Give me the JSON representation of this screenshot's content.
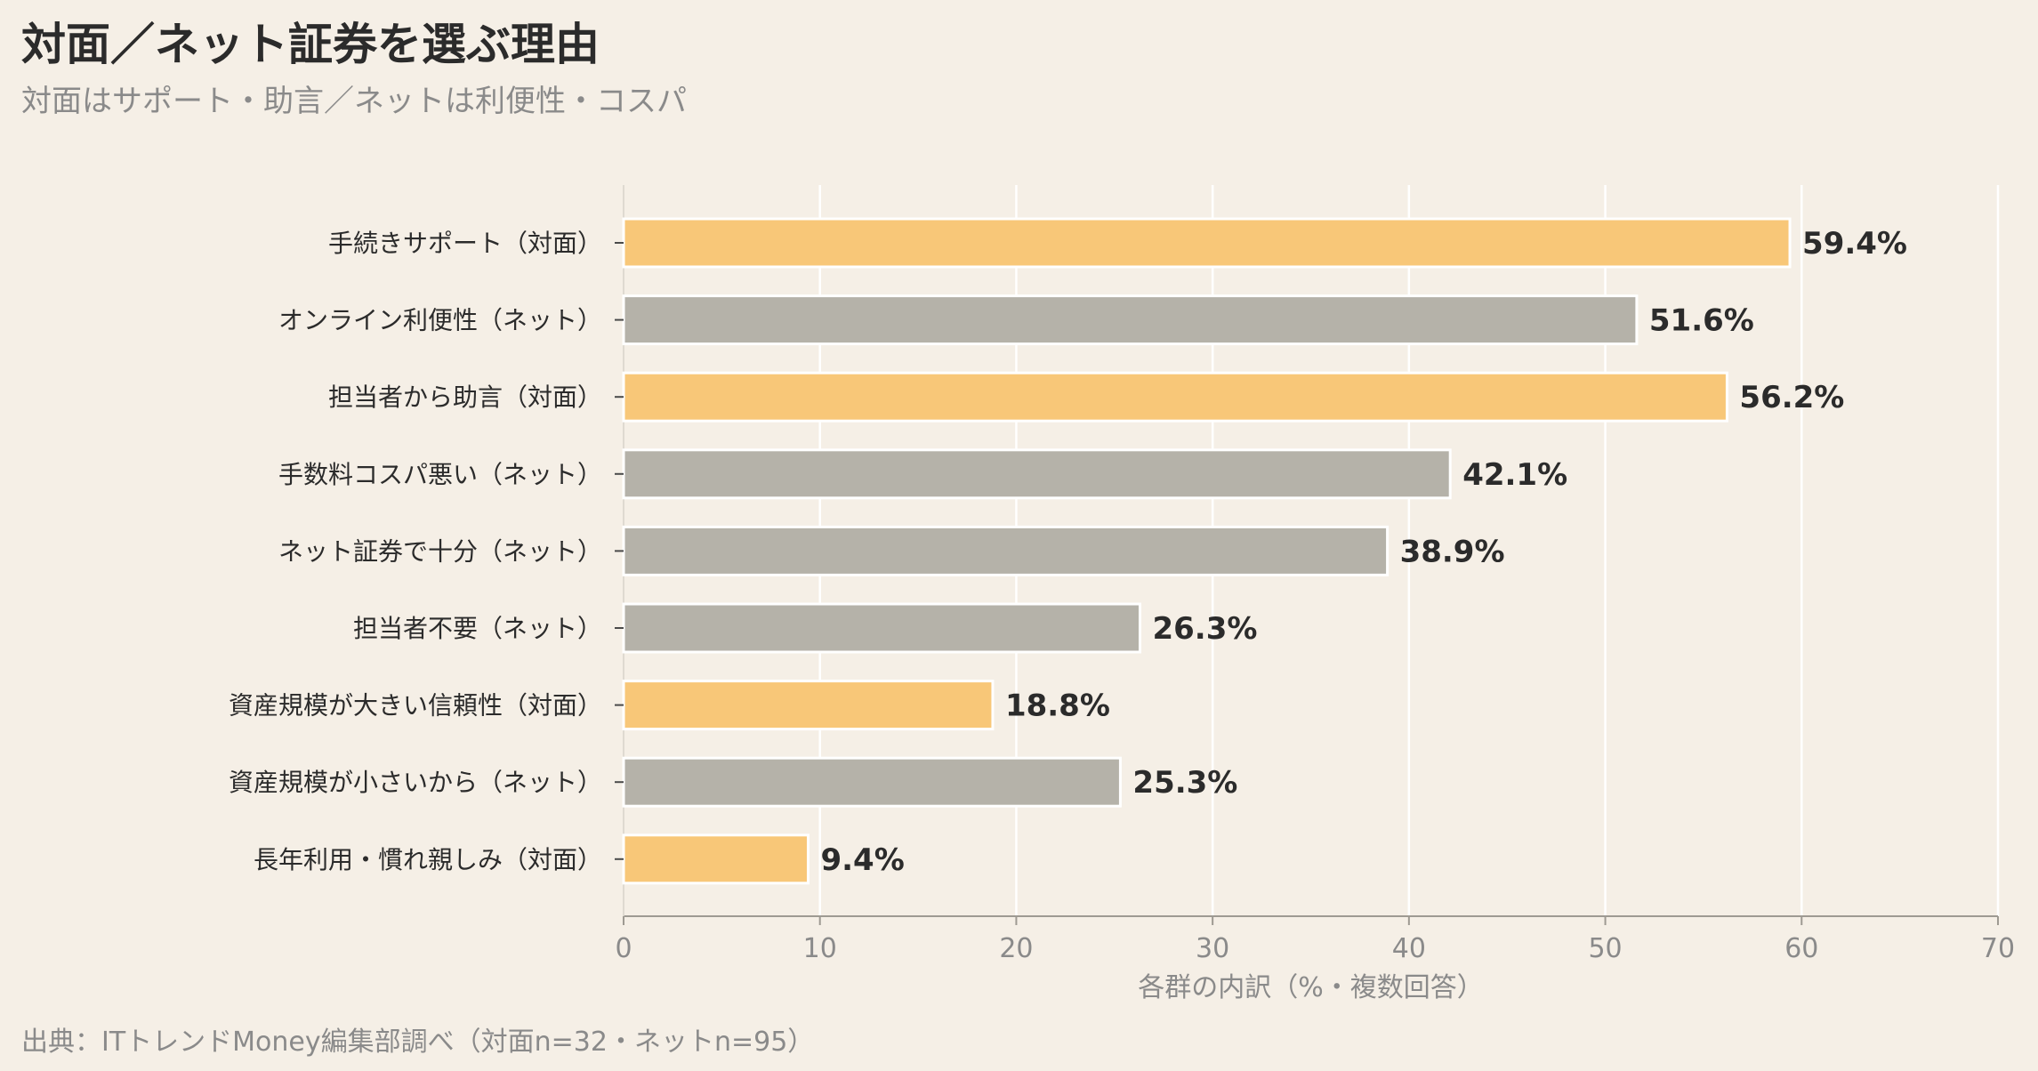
{
  "header": {
    "title": "対面／ネット証券を選ぶ理由",
    "subtitle": "対面はサポート・助言／ネットは利便性・コスパ"
  },
  "footer": {
    "source": "出典：ITトレンドMoney編集部調べ（対面n=32・ネットn=95）"
  },
  "colors": {
    "taimen": "#f8c778",
    "net": "#b5b2a9",
    "background": "#f5efe6",
    "grid": "#ffffff"
  },
  "chart_data": {
    "type": "bar",
    "orientation": "horizontal",
    "categories": [
      "手続きサポート（対面）",
      "オンライン利便性（ネット）",
      "担当者から助言（対面）",
      "手数料コスパ悪い（ネット）",
      "ネット証券で十分（ネット）",
      "担当者不要（ネット）",
      "資産規模が大きい信頼性（対面）",
      "資産規模が小さいから（ネット）",
      "長年利用・慣れ親しみ（対面）"
    ],
    "values": [
      59.4,
      51.6,
      56.2,
      42.1,
      38.9,
      26.3,
      18.8,
      25.3,
      9.4
    ],
    "value_labels": [
      "59.4%",
      "51.6%",
      "56.2%",
      "42.1%",
      "38.9%",
      "26.3%",
      "18.8%",
      "25.3%",
      "9.4%"
    ],
    "groups": [
      "taimen",
      "net",
      "taimen",
      "net",
      "net",
      "net",
      "taimen",
      "net",
      "taimen"
    ],
    "xlabel": "各群の内訳（%・複数回答）",
    "ylabel": "",
    "xlim": [
      0,
      70
    ],
    "xticks": [
      0,
      10,
      20,
      30,
      40,
      50,
      60,
      70
    ],
    "grid": true,
    "legend": "none"
  }
}
